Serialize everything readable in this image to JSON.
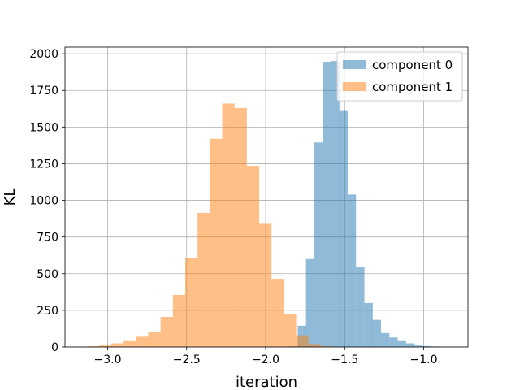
{
  "chart_data": {
    "type": "bar",
    "title": "",
    "xlabel": "iteration",
    "ylabel": "KL",
    "xlim": [
      -3.27,
      -0.72
    ],
    "ylim": [
      0,
      2045
    ],
    "xticks": [
      -3.0,
      -2.5,
      -2.0,
      -1.5,
      -1.0
    ],
    "xtick_labels": [
      "−3.0",
      "−2.5",
      "−2.0",
      "−1.5",
      "−1.0"
    ],
    "yticks": [
      0,
      250,
      500,
      750,
      1000,
      1250,
      1500,
      1750,
      2000
    ],
    "ytick_labels": [
      "0",
      "250",
      "500",
      "750",
      "1000",
      "1250",
      "1500",
      "1750",
      "2000"
    ],
    "grid": true,
    "legend_position": "top-right",
    "series": [
      {
        "name": "component 0",
        "color": "#1f77b4",
        "opacity": 0.5,
        "bin_width": 0.0528,
        "bins": [
          [
            -1.85,
            5
          ],
          [
            -1.797,
            145
          ],
          [
            -1.745,
            600
          ],
          [
            -1.692,
            1395
          ],
          [
            -1.639,
            1945
          ],
          [
            -1.586,
            1950
          ],
          [
            -1.534,
            1615
          ],
          [
            -1.481,
            1040
          ],
          [
            -1.428,
            545
          ],
          [
            -1.375,
            300
          ],
          [
            -1.323,
            185
          ],
          [
            -1.27,
            95
          ],
          [
            -1.217,
            65
          ],
          [
            -1.164,
            40
          ],
          [
            -1.111,
            25
          ],
          [
            -1.059,
            10
          ],
          [
            -1.006,
            6
          ],
          [
            -0.953,
            3
          ],
          [
            -0.9,
            2
          ],
          [
            -0.848,
            1
          ]
        ]
      },
      {
        "name": "component 1",
        "color": "#ff7f0e",
        "opacity": 0.5,
        "bin_width": 0.0781,
        "bins": [
          [
            -3.133,
            5
          ],
          [
            -3.055,
            10
          ],
          [
            -2.977,
            25
          ],
          [
            -2.899,
            40
          ],
          [
            -2.821,
            70
          ],
          [
            -2.743,
            105
          ],
          [
            -2.665,
            205
          ],
          [
            -2.587,
            355
          ],
          [
            -2.509,
            605
          ],
          [
            -2.431,
            915
          ],
          [
            -2.353,
            1420
          ],
          [
            -2.275,
            1660
          ],
          [
            -2.197,
            1630
          ],
          [
            -2.119,
            1235
          ],
          [
            -2.041,
            840
          ],
          [
            -1.963,
            465
          ],
          [
            -1.885,
            225
          ],
          [
            -1.807,
            80
          ],
          [
            -1.729,
            20
          ],
          [
            -1.651,
            5
          ]
        ]
      }
    ]
  }
}
